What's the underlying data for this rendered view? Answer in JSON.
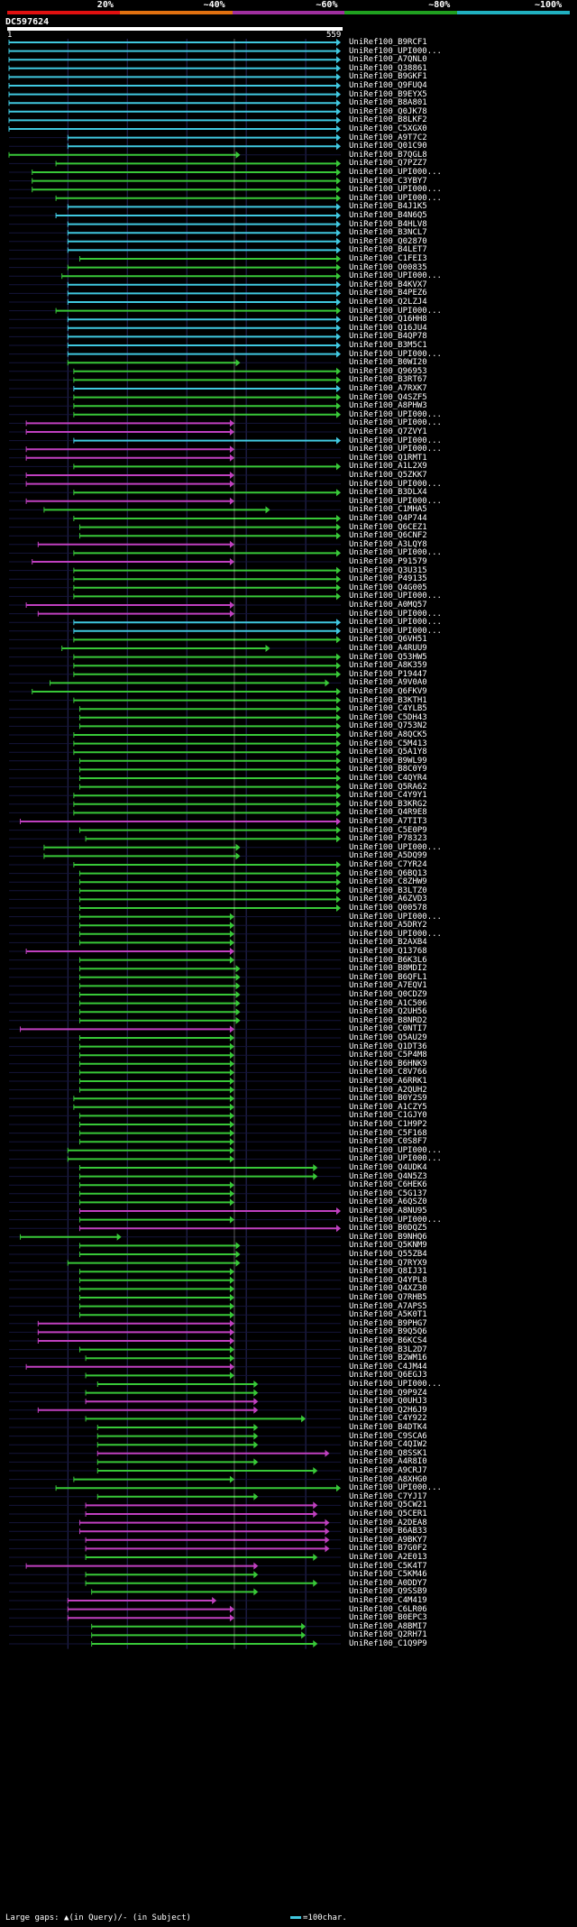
{
  "legend": {
    "labels": [
      "20%",
      "~40%",
      "~60%",
      "~80%",
      "~100%"
    ],
    "colors": [
      "#e01010",
      "#e07010",
      "#a030a0",
      "#20a020",
      "#20b0c0"
    ]
  },
  "query": {
    "name": "DC597624",
    "start": "1",
    "end": "559"
  },
  "colors": {
    "cyan": "#40c8e0",
    "green": "#38c838",
    "magenta": "#c040c0",
    "grid": "#2a2a60"
  },
  "hits": [
    {
      "id": "UniRef100_B9RCF1",
      "color": "cyan",
      "s": 1,
      "e": 559
    },
    {
      "id": "UniRef100_UPI000...",
      "color": "cyan",
      "s": 1,
      "e": 559
    },
    {
      "id": "UniRef100_A7QNL0",
      "color": "cyan",
      "s": 1,
      "e": 559
    },
    {
      "id": "UniRef100_Q38861",
      "color": "cyan",
      "s": 1,
      "e": 559
    },
    {
      "id": "UniRef100_B9GKF1",
      "color": "cyan",
      "s": 1,
      "e": 559
    },
    {
      "id": "UniRef100_Q9FUQ4",
      "color": "cyan",
      "s": 1,
      "e": 559
    },
    {
      "id": "UniRef100_B9EYX5",
      "color": "cyan",
      "s": 1,
      "e": 559
    },
    {
      "id": "UniRef100_B8A801",
      "color": "cyan",
      "s": 1,
      "e": 559
    },
    {
      "id": "UniRef100_Q0JK78",
      "color": "cyan",
      "s": 1,
      "e": 559
    },
    {
      "id": "UniRef100_B8LKF2",
      "color": "cyan",
      "s": 1,
      "e": 559
    },
    {
      "id": "UniRef100_C5XGX0",
      "color": "cyan",
      "s": 1,
      "e": 559
    },
    {
      "id": "UniRef100_A9T7C2",
      "color": "cyan",
      "s": 100,
      "e": 559
    },
    {
      "id": "UniRef100_Q01C90",
      "color": "cyan",
      "s": 100,
      "e": 559
    },
    {
      "id": "UniRef100_B7QGL8",
      "color": "green",
      "s": 1,
      "e": 390
    },
    {
      "id": "UniRef100_Q7PZZ7",
      "color": "green",
      "s": 80,
      "e": 559
    },
    {
      "id": "UniRef100_UPI000...",
      "color": "green",
      "s": 40,
      "e": 559
    },
    {
      "id": "UniRef100_C3YBY7",
      "color": "green",
      "s": 40,
      "e": 559
    },
    {
      "id": "UniRef100_UPI000...",
      "color": "green",
      "s": 40,
      "e": 559
    },
    {
      "id": "UniRef100_UPI000...",
      "color": "green",
      "s": 80,
      "e": 559
    },
    {
      "id": "UniRef100_B4J1K5",
      "color": "cyan",
      "s": 100,
      "e": 559
    },
    {
      "id": "UniRef100_B4N6Q5",
      "color": "cyan",
      "s": 80,
      "e": 559
    },
    {
      "id": "UniRef100_B4HLV8",
      "color": "cyan",
      "s": 100,
      "e": 559
    },
    {
      "id": "UniRef100_B3NCL7",
      "color": "cyan",
      "s": 100,
      "e": 559
    },
    {
      "id": "UniRef100_Q02870",
      "color": "cyan",
      "s": 100,
      "e": 559
    },
    {
      "id": "UniRef100_B4LET7",
      "color": "cyan",
      "s": 100,
      "e": 559
    },
    {
      "id": "UniRef100_C1FEI3",
      "color": "green",
      "s": 120,
      "e": 559
    },
    {
      "id": "UniRef100_O00835",
      "color": "green",
      "s": 100,
      "e": 559
    },
    {
      "id": "UniRef100_UPI000...",
      "color": "green",
      "s": 90,
      "e": 559
    },
    {
      "id": "UniRef100_B4KVX7",
      "color": "cyan",
      "s": 100,
      "e": 559
    },
    {
      "id": "UniRef100_B4PEZ6",
      "color": "cyan",
      "s": 100,
      "e": 559
    },
    {
      "id": "UniRef100_Q2LZJ4",
      "color": "cyan",
      "s": 100,
      "e": 559
    },
    {
      "id": "UniRef100_UPI000...",
      "color": "green",
      "s": 80,
      "e": 559
    },
    {
      "id": "UniRef100_Q16HH8",
      "color": "cyan",
      "s": 100,
      "e": 559
    },
    {
      "id": "UniRef100_Q16JU4",
      "color": "cyan",
      "s": 100,
      "e": 559
    },
    {
      "id": "UniRef100_B4QP78",
      "color": "cyan",
      "s": 100,
      "e": 559
    },
    {
      "id": "UniRef100_B3M5C1",
      "color": "cyan",
      "s": 100,
      "e": 559
    },
    {
      "id": "UniRef100_UPI000...",
      "color": "cyan",
      "s": 100,
      "e": 559
    },
    {
      "id": "UniRef100_B0WI20",
      "color": "green",
      "s": 100,
      "e": 390
    },
    {
      "id": "UniRef100_Q96953",
      "color": "green",
      "s": 110,
      "e": 559
    },
    {
      "id": "UniRef100_B3RT67",
      "color": "green",
      "s": 110,
      "e": 559
    },
    {
      "id": "UniRef100_A7RXK7",
      "color": "cyan",
      "s": 110,
      "e": 559
    },
    {
      "id": "UniRef100_Q4SZF5",
      "color": "green",
      "s": 110,
      "e": 559
    },
    {
      "id": "UniRef100_A8PHW3",
      "color": "green",
      "s": 110,
      "e": 559
    },
    {
      "id": "UniRef100_UPI000...",
      "color": "green",
      "s": 110,
      "e": 559
    },
    {
      "id": "UniRef100_UPI000...",
      "color": "magenta",
      "s": 30,
      "e": 380
    },
    {
      "id": "UniRef100_Q7ZVY1",
      "color": "magenta",
      "s": 30,
      "e": 380
    },
    {
      "id": "UniRef100_UPI000...",
      "color": "cyan",
      "s": 110,
      "e": 559
    },
    {
      "id": "UniRef100_UPI000...",
      "color": "magenta",
      "s": 30,
      "e": 380
    },
    {
      "id": "UniRef100_Q1RMT1",
      "color": "magenta",
      "s": 30,
      "e": 380
    },
    {
      "id": "UniRef100_A1L2X9",
      "color": "green",
      "s": 110,
      "e": 559
    },
    {
      "id": "UniRef100_Q5ZKK7",
      "color": "magenta",
      "s": 30,
      "e": 380
    },
    {
      "id": "UniRef100_UPI000...",
      "color": "magenta",
      "s": 30,
      "e": 380
    },
    {
      "id": "UniRef100_B3DLX4",
      "color": "green",
      "s": 110,
      "e": 559
    },
    {
      "id": "UniRef100_UPI000...",
      "color": "magenta",
      "s": 30,
      "e": 380
    },
    {
      "id": "UniRef100_C1MHA5",
      "color": "green",
      "s": 60,
      "e": 440
    },
    {
      "id": "UniRef100_Q4P744",
      "color": "green",
      "s": 110,
      "e": 559
    },
    {
      "id": "UniRef100_Q6CEZ1",
      "color": "green",
      "s": 120,
      "e": 559
    },
    {
      "id": "UniRef100_Q6CNF2",
      "color": "green",
      "s": 120,
      "e": 559
    },
    {
      "id": "UniRef100_A3LQY8",
      "color": "magenta",
      "s": 50,
      "e": 380
    },
    {
      "id": "UniRef100_UPI000...",
      "color": "green",
      "s": 110,
      "e": 559
    },
    {
      "id": "UniRef100_P91579",
      "color": "magenta",
      "s": 40,
      "e": 380
    },
    {
      "id": "UniRef100_Q3U315",
      "color": "green",
      "s": 110,
      "e": 559
    },
    {
      "id": "UniRef100_P49135",
      "color": "green",
      "s": 110,
      "e": 559
    },
    {
      "id": "UniRef100_Q4G005",
      "color": "green",
      "s": 110,
      "e": 559
    },
    {
      "id": "UniRef100_UPI000...",
      "color": "green",
      "s": 110,
      "e": 559
    },
    {
      "id": "UniRef100_A0MQ57",
      "color": "magenta",
      "s": 30,
      "e": 380
    },
    {
      "id": "UniRef100_UPI000...",
      "color": "magenta",
      "s": 50,
      "e": 380
    },
    {
      "id": "UniRef100_UPI000...",
      "color": "cyan",
      "s": 110,
      "e": 559
    },
    {
      "id": "UniRef100_UPI000...",
      "color": "cyan",
      "s": 110,
      "e": 559
    },
    {
      "id": "UniRef100_Q6VH51",
      "color": "green",
      "s": 110,
      "e": 559
    },
    {
      "id": "UniRef100_A4RUU9",
      "color": "green",
      "s": 90,
      "e": 440
    },
    {
      "id": "UniRef100_Q53HW5",
      "color": "green",
      "s": 110,
      "e": 559
    },
    {
      "id": "UniRef100_A8K359",
      "color": "green",
      "s": 110,
      "e": 559
    },
    {
      "id": "UniRef100_P19447",
      "color": "green",
      "s": 110,
      "e": 559
    },
    {
      "id": "UniRef100_A9V0A0",
      "color": "green",
      "s": 70,
      "e": 540
    },
    {
      "id": "UniRef100_Q6FKV9",
      "color": "green",
      "s": 40,
      "e": 559
    },
    {
      "id": "UniRef100_B3KTH1",
      "color": "green",
      "s": 110,
      "e": 559
    },
    {
      "id": "UniRef100_C4YLB5",
      "color": "green",
      "s": 120,
      "e": 559
    },
    {
      "id": "UniRef100_C5DH43",
      "color": "green",
      "s": 120,
      "e": 559
    },
    {
      "id": "UniRef100_Q753N2",
      "color": "green",
      "s": 120,
      "e": 559
    },
    {
      "id": "UniRef100_A8QCK5",
      "color": "green",
      "s": 110,
      "e": 559
    },
    {
      "id": "UniRef100_C5M413",
      "color": "green",
      "s": 110,
      "e": 559
    },
    {
      "id": "UniRef100_Q5A1Y8",
      "color": "green",
      "s": 110,
      "e": 559
    },
    {
      "id": "UniRef100_B9WL99",
      "color": "green",
      "s": 120,
      "e": 559
    },
    {
      "id": "UniRef100_B8C0Y9",
      "color": "green",
      "s": 120,
      "e": 559
    },
    {
      "id": "UniRef100_C4QYR4",
      "color": "green",
      "s": 120,
      "e": 559
    },
    {
      "id": "UniRef100_Q5RA62",
      "color": "green",
      "s": 120,
      "e": 559
    },
    {
      "id": "UniRef100_C4Y9Y1",
      "color": "green",
      "s": 110,
      "e": 559
    },
    {
      "id": "UniRef100_B3KRG2",
      "color": "green",
      "s": 110,
      "e": 559
    },
    {
      "id": "UniRef100_Q4R9E8",
      "color": "green",
      "s": 110,
      "e": 559
    },
    {
      "id": "UniRef100_A7TIT3",
      "color": "magenta",
      "s": 20,
      "e": 559
    },
    {
      "id": "UniRef100_C5E0P9",
      "color": "green",
      "s": 120,
      "e": 559
    },
    {
      "id": "UniRef100_P78323",
      "color": "green",
      "s": 130,
      "e": 559
    },
    {
      "id": "UniRef100_UPI000...",
      "color": "green",
      "s": 60,
      "e": 390
    },
    {
      "id": "UniRef100_A5DQ99",
      "color": "green",
      "s": 60,
      "e": 390
    },
    {
      "id": "UniRef100_C7YR24",
      "color": "green",
      "s": 110,
      "e": 559
    },
    {
      "id": "UniRef100_Q6BQ13",
      "color": "green",
      "s": 120,
      "e": 559
    },
    {
      "id": "UniRef100_C8ZHW9",
      "color": "green",
      "s": 120,
      "e": 559
    },
    {
      "id": "UniRef100_B3LTZ0",
      "color": "green",
      "s": 120,
      "e": 559
    },
    {
      "id": "UniRef100_A6ZVD3",
      "color": "green",
      "s": 120,
      "e": 559
    },
    {
      "id": "UniRef100_Q00578",
      "color": "green",
      "s": 120,
      "e": 559
    },
    {
      "id": "UniRef100_UPI000...",
      "color": "green",
      "s": 120,
      "e": 380
    },
    {
      "id": "UniRef100_A5DRY2",
      "color": "green",
      "s": 120,
      "e": 380
    },
    {
      "id": "UniRef100_UPI000...",
      "color": "green",
      "s": 120,
      "e": 380
    },
    {
      "id": "UniRef100_B2AXB4",
      "color": "green",
      "s": 120,
      "e": 380
    },
    {
      "id": "UniRef100_Q13768",
      "color": "magenta",
      "s": 30,
      "e": 380
    },
    {
      "id": "UniRef100_B6K3L6",
      "color": "green",
      "s": 120,
      "e": 380
    },
    {
      "id": "UniRef100_B8MDI2",
      "color": "green",
      "s": 120,
      "e": 390
    },
    {
      "id": "UniRef100_B6QFL1",
      "color": "green",
      "s": 120,
      "e": 390
    },
    {
      "id": "UniRef100_A7EQV1",
      "color": "green",
      "s": 120,
      "e": 390
    },
    {
      "id": "UniRef100_Q0CDZ9",
      "color": "green",
      "s": 120,
      "e": 390
    },
    {
      "id": "UniRef100_A1C506",
      "color": "green",
      "s": 120,
      "e": 390
    },
    {
      "id": "UniRef100_Q2UH56",
      "color": "green",
      "s": 120,
      "e": 390
    },
    {
      "id": "UniRef100_B8NRD2",
      "color": "green",
      "s": 120,
      "e": 390
    },
    {
      "id": "UniRef100_C0NTI7",
      "color": "magenta",
      "s": 20,
      "e": 380
    },
    {
      "id": "UniRef100_Q5AU29",
      "color": "green",
      "s": 120,
      "e": 380
    },
    {
      "id": "UniRef100_Q1DT36",
      "color": "green",
      "s": 120,
      "e": 380
    },
    {
      "id": "UniRef100_C5P4M8",
      "color": "green",
      "s": 120,
      "e": 380
    },
    {
      "id": "UniRef100_B6HNK9",
      "color": "green",
      "s": 120,
      "e": 380
    },
    {
      "id": "UniRef100_C8V766",
      "color": "green",
      "s": 120,
      "e": 380
    },
    {
      "id": "UniRef100_A6RRK1",
      "color": "green",
      "s": 120,
      "e": 380
    },
    {
      "id": "UniRef100_A2QUH2",
      "color": "green",
      "s": 120,
      "e": 380
    },
    {
      "id": "UniRef100_B0Y2S9",
      "color": "green",
      "s": 110,
      "e": 380
    },
    {
      "id": "UniRef100_A1CZY5",
      "color": "green",
      "s": 110,
      "e": 380
    },
    {
      "id": "UniRef100_C1GJY0",
      "color": "green",
      "s": 120,
      "e": 380
    },
    {
      "id": "UniRef100_C1H9P2",
      "color": "green",
      "s": 120,
      "e": 380
    },
    {
      "id": "UniRef100_C5F168",
      "color": "green",
      "s": 120,
      "e": 380
    },
    {
      "id": "UniRef100_C0S8F7",
      "color": "green",
      "s": 120,
      "e": 380
    },
    {
      "id": "UniRef100_UPI000...",
      "color": "green",
      "s": 100,
      "e": 380
    },
    {
      "id": "UniRef100_UPI000...",
      "color": "green",
      "s": 100,
      "e": 380
    },
    {
      "id": "UniRef100_Q4UDK4",
      "color": "green",
      "s": 120,
      "e": 520
    },
    {
      "id": "UniRef100_Q4N5Z3",
      "color": "green",
      "s": 120,
      "e": 520
    },
    {
      "id": "UniRef100_C6HEK6",
      "color": "green",
      "s": 120,
      "e": 380
    },
    {
      "id": "UniRef100_C5G137",
      "color": "green",
      "s": 120,
      "e": 380
    },
    {
      "id": "UniRef100_A6QSZ0",
      "color": "green",
      "s": 120,
      "e": 380
    },
    {
      "id": "UniRef100_A8NU95",
      "color": "magenta",
      "s": 120,
      "e": 559
    },
    {
      "id": "UniRef100_UPI000...",
      "color": "green",
      "s": 120,
      "e": 380
    },
    {
      "id": "UniRef100_B0DQZ5",
      "color": "magenta",
      "s": 120,
      "e": 559
    },
    {
      "id": "UniRef100_B9NHQ6",
      "color": "green",
      "s": 20,
      "e": 190
    },
    {
      "id": "UniRef100_Q5KNM9",
      "color": "green",
      "s": 120,
      "e": 390
    },
    {
      "id": "UniRef100_Q55ZB4",
      "color": "green",
      "s": 120,
      "e": 390
    },
    {
      "id": "UniRef100_Q7RYX9",
      "color": "green",
      "s": 100,
      "e": 390
    },
    {
      "id": "UniRef100_Q8IJ31",
      "color": "green",
      "s": 120,
      "e": 380
    },
    {
      "id": "UniRef100_Q4YPL8",
      "color": "green",
      "s": 120,
      "e": 380
    },
    {
      "id": "UniRef100_Q4XZ30",
      "color": "green",
      "s": 120,
      "e": 380
    },
    {
      "id": "UniRef100_Q7RHB5",
      "color": "green",
      "s": 120,
      "e": 380
    },
    {
      "id": "UniRef100_A7APS5",
      "color": "green",
      "s": 120,
      "e": 380
    },
    {
      "id": "UniRef100_A5K0T1",
      "color": "green",
      "s": 120,
      "e": 380
    },
    {
      "id": "UniRef100_B9PHG7",
      "color": "magenta",
      "s": 50,
      "e": 380
    },
    {
      "id": "UniRef100_B9Q5Q6",
      "color": "magenta",
      "s": 50,
      "e": 380
    },
    {
      "id": "UniRef100_B6KCS4",
      "color": "magenta",
      "s": 50,
      "e": 380
    },
    {
      "id": "UniRef100_B3L2D7",
      "color": "green",
      "s": 120,
      "e": 380
    },
    {
      "id": "UniRef100_B2WM16",
      "color": "green",
      "s": 130,
      "e": 380
    },
    {
      "id": "UniRef100_C4JM44",
      "color": "magenta",
      "s": 30,
      "e": 380
    },
    {
      "id": "UniRef100_Q6EGJ3",
      "color": "green",
      "s": 130,
      "e": 380
    },
    {
      "id": "UniRef100_UPI000...",
      "color": "green",
      "s": 150,
      "e": 420
    },
    {
      "id": "UniRef100_Q9P9Z4",
      "color": "green",
      "s": 130,
      "e": 420
    },
    {
      "id": "UniRef100_Q0UHJ3",
      "color": "magenta",
      "s": 130,
      "e": 420
    },
    {
      "id": "UniRef100_Q2H6J9",
      "color": "magenta",
      "s": 50,
      "e": 420
    },
    {
      "id": "UniRef100_C4Y922",
      "color": "green",
      "s": 130,
      "e": 500
    },
    {
      "id": "UniRef100_B4DTK4",
      "color": "green",
      "s": 150,
      "e": 420
    },
    {
      "id": "UniRef100_C9SCA6",
      "color": "green",
      "s": 150,
      "e": 420
    },
    {
      "id": "UniRef100_C4QIW2",
      "color": "green",
      "s": 150,
      "e": 420
    },
    {
      "id": "UniRef100_Q8SSK1",
      "color": "magenta",
      "s": 150,
      "e": 540
    },
    {
      "id": "UniRef100_A4R8I0",
      "color": "green",
      "s": 150,
      "e": 420
    },
    {
      "id": "UniRef100_A9CRJ7",
      "color": "green",
      "s": 150,
      "e": 520
    },
    {
      "id": "UniRef100_A8XHG0",
      "color": "green",
      "s": 110,
      "e": 380
    },
    {
      "id": "UniRef100_UPI000...",
      "color": "green",
      "s": 80,
      "e": 559
    },
    {
      "id": "UniRef100_C7YJ17",
      "color": "green",
      "s": 150,
      "e": 420
    },
    {
      "id": "UniRef100_Q5CW21",
      "color": "magenta",
      "s": 130,
      "e": 520
    },
    {
      "id": "UniRef100_Q5CER1",
      "color": "magenta",
      "s": 130,
      "e": 520
    },
    {
      "id": "UniRef100_A2DEA8",
      "color": "magenta",
      "s": 120,
      "e": 540
    },
    {
      "id": "UniRef100_B6AB33",
      "color": "magenta",
      "s": 120,
      "e": 540
    },
    {
      "id": "UniRef100_A9BKY7",
      "color": "magenta",
      "s": 130,
      "e": 540
    },
    {
      "id": "UniRef100_B7G0F2",
      "color": "magenta",
      "s": 130,
      "e": 540
    },
    {
      "id": "UniRef100_A2E013",
      "color": "green",
      "s": 130,
      "e": 520
    },
    {
      "id": "UniRef100_C5K4T7",
      "color": "magenta",
      "s": 30,
      "e": 420
    },
    {
      "id": "UniRef100_C5KM46",
      "color": "green",
      "s": 130,
      "e": 420
    },
    {
      "id": "UniRef100_A0DDY7",
      "color": "green",
      "s": 130,
      "e": 520
    },
    {
      "id": "UniRef100_Q9SSB9",
      "color": "green",
      "s": 140,
      "e": 420
    },
    {
      "id": "UniRef100_C4M419",
      "color": "magenta",
      "s": 100,
      "e": 350
    },
    {
      "id": "UniRef100_C6LR06",
      "color": "magenta",
      "s": 100,
      "e": 380
    },
    {
      "id": "UniRef100_B0EPC3",
      "color": "magenta",
      "s": 100,
      "e": 380
    },
    {
      "id": "UniRef100_A8BMI7",
      "color": "green",
      "s": 140,
      "e": 500
    },
    {
      "id": "UniRef100_Q2RH71",
      "color": "green",
      "s": 140,
      "e": 500
    },
    {
      "id": "UniRef100_C1Q9P9",
      "color": "green",
      "s": 140,
      "e": 520
    }
  ],
  "footer": {
    "gap_note": "Large gaps: ▲(in Query)/- (in Subject)",
    "scale_key": "=100char."
  }
}
